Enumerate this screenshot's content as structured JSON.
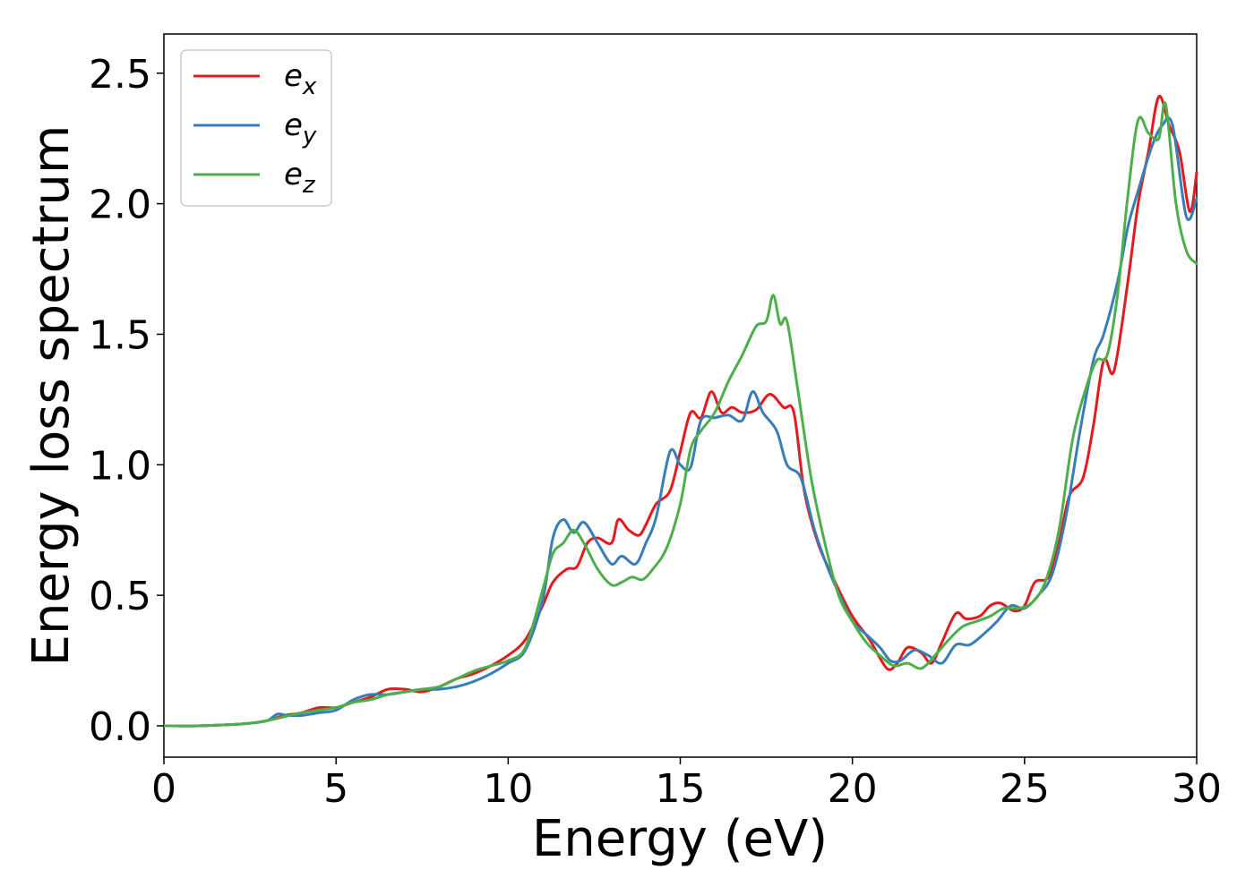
{
  "chart_data": {
    "type": "line",
    "title": "",
    "xlabel": "Energy (eV)",
    "ylabel": "Energy loss spectrum",
    "xlim": [
      0,
      30
    ],
    "ylim": [
      -0.12,
      2.65
    ],
    "xticks": [
      0,
      5,
      10,
      15,
      20,
      25,
      30
    ],
    "xtick_labels": [
      "0",
      "5",
      "10",
      "15",
      "20",
      "25",
      "30"
    ],
    "yticks": [
      0.0,
      0.5,
      1.0,
      1.5,
      2.0,
      2.5
    ],
    "ytick_labels": [
      "0.0",
      "0.5",
      "1.0",
      "1.5",
      "2.0",
      "2.5"
    ],
    "grid": false,
    "legend_position": "top-left",
    "series": [
      {
        "name": "e",
        "subscript": "x",
        "color": "#e41a1c",
        "x": [
          0,
          1,
          2,
          2.5,
          3,
          3.5,
          4,
          4.5,
          5,
          5.5,
          6,
          6.5,
          7,
          7.5,
          8,
          8.5,
          9,
          9.5,
          10,
          10.5,
          11,
          11.3,
          11.7,
          12,
          12.3,
          12.6,
          13,
          13.2,
          13.5,
          13.8,
          14,
          14.3,
          14.7,
          15,
          15.3,
          15.6,
          15.9,
          16.2,
          16.5,
          16.8,
          17.2,
          17.6,
          18,
          18.3,
          18.6,
          19,
          19.5,
          20,
          20.5,
          21,
          21.3,
          21.6,
          22,
          22.3,
          22.6,
          23,
          23.3,
          23.7,
          24,
          24.3,
          24.7,
          25,
          25.3,
          25.7,
          26,
          26.3,
          26.7,
          27,
          27.3,
          27.6,
          28,
          28.3,
          28.6,
          28.9,
          29.2,
          29.5,
          29.8,
          30
        ],
        "values": [
          0,
          0,
          0.005,
          0.01,
          0.02,
          0.04,
          0.05,
          0.07,
          0.07,
          0.09,
          0.11,
          0.14,
          0.14,
          0.13,
          0.15,
          0.18,
          0.2,
          0.23,
          0.27,
          0.33,
          0.46,
          0.55,
          0.6,
          0.61,
          0.7,
          0.72,
          0.7,
          0.79,
          0.75,
          0.73,
          0.77,
          0.85,
          0.9,
          1.05,
          1.2,
          1.18,
          1.28,
          1.2,
          1.22,
          1.2,
          1.21,
          1.27,
          1.22,
          1.2,
          0.9,
          0.7,
          0.55,
          0.42,
          0.33,
          0.22,
          0.24,
          0.3,
          0.28,
          0.24,
          0.32,
          0.43,
          0.41,
          0.42,
          0.46,
          0.47,
          0.44,
          0.46,
          0.55,
          0.57,
          0.7,
          0.88,
          0.95,
          1.15,
          1.4,
          1.36,
          1.7,
          2.0,
          2.2,
          2.41,
          2.3,
          2.2,
          1.97,
          2.12
        ]
      },
      {
        "name": "e",
        "subscript": "y",
        "color": "#377eb8",
        "x": [
          0,
          1,
          2,
          2.5,
          3,
          3.3,
          3.6,
          4,
          4.5,
          5,
          5.5,
          6,
          6.5,
          7,
          7.5,
          8,
          8.5,
          9,
          9.5,
          10,
          10.5,
          11,
          11.3,
          11.6,
          11.9,
          12.2,
          12.6,
          13,
          13.3,
          13.7,
          14,
          14.3,
          14.7,
          15,
          15.3,
          15.6,
          16,
          16.4,
          16.8,
          17.1,
          17.4,
          17.8,
          18.1,
          18.5,
          18.9,
          19.3,
          19.7,
          20,
          20.4,
          20.8,
          21.1,
          21.4,
          21.8,
          22.2,
          22.6,
          23,
          23.4,
          23.8,
          24.2,
          24.6,
          25,
          25.4,
          25.8,
          26.2,
          26.6,
          27,
          27.3,
          27.7,
          28,
          28.3,
          28.7,
          29,
          29.3,
          29.7,
          30
        ],
        "values": [
          0,
          0,
          0.005,
          0.01,
          0.02,
          0.045,
          0.04,
          0.04,
          0.05,
          0.06,
          0.1,
          0.12,
          0.12,
          0.13,
          0.14,
          0.14,
          0.15,
          0.17,
          0.2,
          0.24,
          0.29,
          0.48,
          0.72,
          0.79,
          0.74,
          0.78,
          0.7,
          0.62,
          0.65,
          0.62,
          0.7,
          0.8,
          1.05,
          1.0,
          0.99,
          1.17,
          1.18,
          1.19,
          1.17,
          1.28,
          1.2,
          1.13,
          1.0,
          0.95,
          0.75,
          0.6,
          0.48,
          0.4,
          0.35,
          0.3,
          0.25,
          0.25,
          0.29,
          0.27,
          0.24,
          0.31,
          0.31,
          0.35,
          0.4,
          0.46,
          0.45,
          0.5,
          0.58,
          0.8,
          1.12,
          1.4,
          1.5,
          1.7,
          1.91,
          2.05,
          2.22,
          2.3,
          2.3,
          1.95,
          2.02
        ]
      },
      {
        "name": "e",
        "subscript": "z",
        "color": "#4daf4a",
        "x": [
          0,
          1,
          2,
          2.5,
          3,
          3.5,
          4,
          4.5,
          5,
          5.5,
          6,
          6.5,
          7,
          7.5,
          8,
          8.5,
          9,
          9.5,
          10,
          10.5,
          11,
          11.3,
          11.6,
          11.9,
          12.2,
          12.6,
          13,
          13.3,
          13.6,
          13.9,
          14.2,
          14.6,
          15,
          15.3,
          15.6,
          16,
          16.4,
          16.8,
          17.2,
          17.5,
          17.7,
          17.9,
          18.1,
          18.4,
          18.8,
          19.2,
          19.6,
          20,
          20.4,
          20.8,
          21.2,
          21.6,
          22,
          22.4,
          22.8,
          23.2,
          23.6,
          24,
          24.4,
          24.8,
          25.2,
          25.6,
          26,
          26.4,
          26.8,
          27.1,
          27.4,
          27.7,
          28,
          28.3,
          28.6,
          28.9,
          29.1,
          29.4,
          29.7,
          30
        ],
        "values": [
          0,
          0,
          0.005,
          0.01,
          0.02,
          0.035,
          0.05,
          0.06,
          0.07,
          0.09,
          0.1,
          0.12,
          0.13,
          0.14,
          0.15,
          0.18,
          0.21,
          0.23,
          0.25,
          0.3,
          0.52,
          0.66,
          0.7,
          0.75,
          0.7,
          0.6,
          0.54,
          0.55,
          0.57,
          0.56,
          0.6,
          0.68,
          0.85,
          1.06,
          1.13,
          1.2,
          1.32,
          1.42,
          1.53,
          1.55,
          1.65,
          1.54,
          1.55,
          1.3,
          0.95,
          0.7,
          0.5,
          0.4,
          0.32,
          0.27,
          0.23,
          0.24,
          0.22,
          0.27,
          0.33,
          0.38,
          0.4,
          0.42,
          0.45,
          0.45,
          0.47,
          0.55,
          0.75,
          1.1,
          1.3,
          1.4,
          1.42,
          1.65,
          2.03,
          2.32,
          2.27,
          2.25,
          2.38,
          2.0,
          1.82,
          1.77
        ]
      }
    ]
  }
}
